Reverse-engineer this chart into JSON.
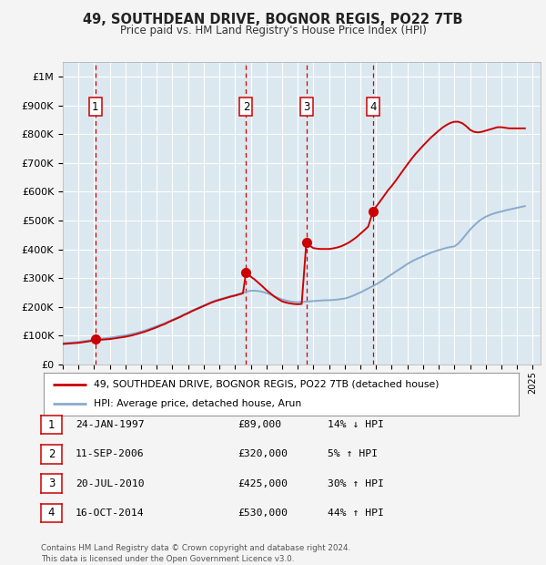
{
  "title": "49, SOUTHDEAN DRIVE, BOGNOR REGIS, PO22 7TB",
  "subtitle": "Price paid vs. HM Land Registry's House Price Index (HPI)",
  "fig_bg_color": "#f4f4f4",
  "plot_bg_color": "#dce8f0",
  "ylim": [
    0,
    1050000
  ],
  "yticks": [
    0,
    100000,
    200000,
    300000,
    400000,
    500000,
    600000,
    700000,
    800000,
    900000,
    1000000
  ],
  "ytick_labels": [
    "£0",
    "£100K",
    "£200K",
    "£300K",
    "£400K",
    "£500K",
    "£600K",
    "£700K",
    "£800K",
    "£900K",
    "£1M"
  ],
  "xlim_start": 1995.0,
  "xlim_end": 2025.5,
  "xticks": [
    1995,
    1996,
    1997,
    1998,
    1999,
    2000,
    2001,
    2002,
    2003,
    2004,
    2005,
    2006,
    2007,
    2008,
    2009,
    2010,
    2011,
    2012,
    2013,
    2014,
    2015,
    2016,
    2017,
    2018,
    2019,
    2020,
    2021,
    2022,
    2023,
    2024,
    2025
  ],
  "sale_dates": [
    1997.07,
    2006.7,
    2010.55,
    2014.79
  ],
  "sale_prices": [
    89000,
    320000,
    425000,
    530000
  ],
  "sale_labels": [
    "1",
    "2",
    "3",
    "4"
  ],
  "sale_line_color": "#cc0000",
  "hpi_line_color": "#88aacc",
  "grid_color": "#ffffff",
  "legend_label_red": "49, SOUTHDEAN DRIVE, BOGNOR REGIS, PO22 7TB (detached house)",
  "legend_label_blue": "HPI: Average price, detached house, Arun",
  "table_rows": [
    [
      "1",
      "24-JAN-1997",
      "£89,000",
      "14% ↓ HPI"
    ],
    [
      "2",
      "11-SEP-2006",
      "£320,000",
      "5% ↑ HPI"
    ],
    [
      "3",
      "20-JUL-2010",
      "£425,000",
      "30% ↑ HPI"
    ],
    [
      "4",
      "16-OCT-2014",
      "£530,000",
      "44% ↑ HPI"
    ]
  ],
  "footer_text": "Contains HM Land Registry data © Crown copyright and database right 2024.\nThis data is licensed under the Open Government Licence v3.0.",
  "hpi_years": [
    1995.0,
    1995.25,
    1995.5,
    1995.75,
    1996.0,
    1996.25,
    1996.5,
    1996.75,
    1997.0,
    1997.25,
    1997.5,
    1997.75,
    1998.0,
    1998.25,
    1998.5,
    1998.75,
    1999.0,
    1999.25,
    1999.5,
    1999.75,
    2000.0,
    2000.25,
    2000.5,
    2000.75,
    2001.0,
    2001.25,
    2001.5,
    2001.75,
    2002.0,
    2002.25,
    2002.5,
    2002.75,
    2003.0,
    2003.25,
    2003.5,
    2003.75,
    2004.0,
    2004.25,
    2004.5,
    2004.75,
    2005.0,
    2005.25,
    2005.5,
    2005.75,
    2006.0,
    2006.25,
    2006.5,
    2006.75,
    2007.0,
    2007.25,
    2007.5,
    2007.75,
    2008.0,
    2008.25,
    2008.5,
    2008.75,
    2009.0,
    2009.25,
    2009.5,
    2009.75,
    2010.0,
    2010.25,
    2010.5,
    2010.75,
    2011.0,
    2011.25,
    2011.5,
    2011.75,
    2012.0,
    2012.25,
    2012.5,
    2012.75,
    2013.0,
    2013.25,
    2013.5,
    2013.75,
    2014.0,
    2014.25,
    2014.5,
    2014.75,
    2015.0,
    2015.25,
    2015.5,
    2015.75,
    2016.0,
    2016.25,
    2016.5,
    2016.75,
    2017.0,
    2017.25,
    2017.5,
    2017.75,
    2018.0,
    2018.25,
    2018.5,
    2018.75,
    2019.0,
    2019.25,
    2019.5,
    2019.75,
    2020.0,
    2020.25,
    2020.5,
    2020.75,
    2021.0,
    2021.25,
    2021.5,
    2021.75,
    2022.0,
    2022.25,
    2022.5,
    2022.75,
    2023.0,
    2023.25,
    2023.5,
    2023.75,
    2024.0,
    2024.25,
    2024.5
  ],
  "hpi_values": [
    74000,
    75000,
    76000,
    77000,
    78000,
    80000,
    82000,
    84000,
    86000,
    88000,
    90000,
    91000,
    93000,
    95000,
    97000,
    99000,
    101000,
    104000,
    107000,
    110000,
    114000,
    118000,
    123000,
    128000,
    133000,
    138000,
    143000,
    149000,
    155000,
    161000,
    167000,
    174000,
    180000,
    187000,
    193000,
    199000,
    205000,
    211000,
    217000,
    222000,
    226000,
    230000,
    234000,
    238000,
    241000,
    245000,
    249000,
    253000,
    256000,
    256000,
    255000,
    252000,
    248000,
    243000,
    237000,
    231000,
    226000,
    222000,
    219000,
    217000,
    216000,
    217000,
    218000,
    219000,
    220000,
    221000,
    222000,
    223000,
    223000,
    224000,
    225000,
    227000,
    229000,
    233000,
    238000,
    244000,
    250000,
    257000,
    264000,
    271000,
    278000,
    286000,
    295000,
    304000,
    313000,
    322000,
    331000,
    340000,
    349000,
    357000,
    364000,
    370000,
    376000,
    382000,
    388000,
    393000,
    397000,
    401000,
    405000,
    408000,
    410000,
    420000,
    435000,
    452000,
    468000,
    482000,
    495000,
    505000,
    513000,
    519000,
    524000,
    528000,
    531000,
    535000,
    538000,
    541000,
    544000,
    547000,
    550000
  ],
  "red_line_years": [
    1995.0,
    1995.25,
    1995.5,
    1995.75,
    1996.0,
    1996.25,
    1996.5,
    1996.75,
    1997.07,
    1997.25,
    1997.5,
    1997.75,
    1998.0,
    1998.25,
    1998.5,
    1998.75,
    1999.0,
    1999.25,
    1999.5,
    1999.75,
    2000.0,
    2000.25,
    2000.5,
    2000.75,
    2001.0,
    2001.25,
    2001.5,
    2001.75,
    2002.0,
    2002.25,
    2002.5,
    2002.75,
    2003.0,
    2003.25,
    2003.5,
    2003.75,
    2004.0,
    2004.25,
    2004.5,
    2004.75,
    2005.0,
    2005.25,
    2005.5,
    2005.75,
    2006.0,
    2006.25,
    2006.5,
    2006.7,
    2007.0,
    2007.25,
    2007.5,
    2007.75,
    2008.0,
    2008.25,
    2008.5,
    2008.75,
    2009.0,
    2009.25,
    2009.5,
    2009.75,
    2010.0,
    2010.25,
    2010.55,
    2010.75,
    2011.0,
    2011.25,
    2011.5,
    2011.75,
    2012.0,
    2012.25,
    2012.5,
    2012.75,
    2013.0,
    2013.25,
    2013.5,
    2013.75,
    2014.0,
    2014.25,
    2014.5,
    2014.79,
    2015.0,
    2015.25,
    2015.5,
    2015.75,
    2016.0,
    2016.25,
    2016.5,
    2016.75,
    2017.0,
    2017.25,
    2017.5,
    2017.75,
    2018.0,
    2018.25,
    2018.5,
    2018.75,
    2019.0,
    2019.25,
    2019.5,
    2019.75,
    2020.0,
    2020.25,
    2020.5,
    2020.75,
    2021.0,
    2021.25,
    2021.5,
    2021.75,
    2022.0,
    2022.25,
    2022.5,
    2022.75,
    2023.0,
    2023.25,
    2023.5,
    2023.75,
    2024.0,
    2024.25,
    2024.5
  ],
  "red_line_values": [
    71000,
    72000,
    73000,
    74000,
    75000,
    77000,
    79000,
    81000,
    89000,
    87000,
    86000,
    87000,
    88000,
    90000,
    92000,
    94000,
    96000,
    99000,
    102000,
    106000,
    110000,
    114000,
    119000,
    124000,
    129000,
    135000,
    140000,
    147000,
    153000,
    159000,
    165000,
    172000,
    178000,
    185000,
    191000,
    197000,
    203000,
    209000,
    215000,
    220000,
    224000,
    228000,
    232000,
    236000,
    239000,
    243000,
    247000,
    320000,
    305000,
    295000,
    283000,
    271000,
    258000,
    247000,
    236000,
    227000,
    219000,
    215000,
    212000,
    210000,
    209000,
    210000,
    425000,
    413000,
    404000,
    402000,
    401000,
    401000,
    401000,
    403000,
    406000,
    410000,
    416000,
    423000,
    432000,
    442000,
    454000,
    466000,
    479000,
    530000,
    548000,
    566000,
    585000,
    604000,
    620000,
    638000,
    657000,
    676000,
    695000,
    713000,
    730000,
    745000,
    760000,
    774000,
    788000,
    800000,
    812000,
    823000,
    832000,
    839000,
    843000,
    843000,
    838000,
    828000,
    815000,
    808000,
    806000,
    808000,
    812000,
    816000,
    820000,
    824000,
    824000,
    822000,
    820000,
    820000,
    820000,
    820000,
    820000
  ]
}
